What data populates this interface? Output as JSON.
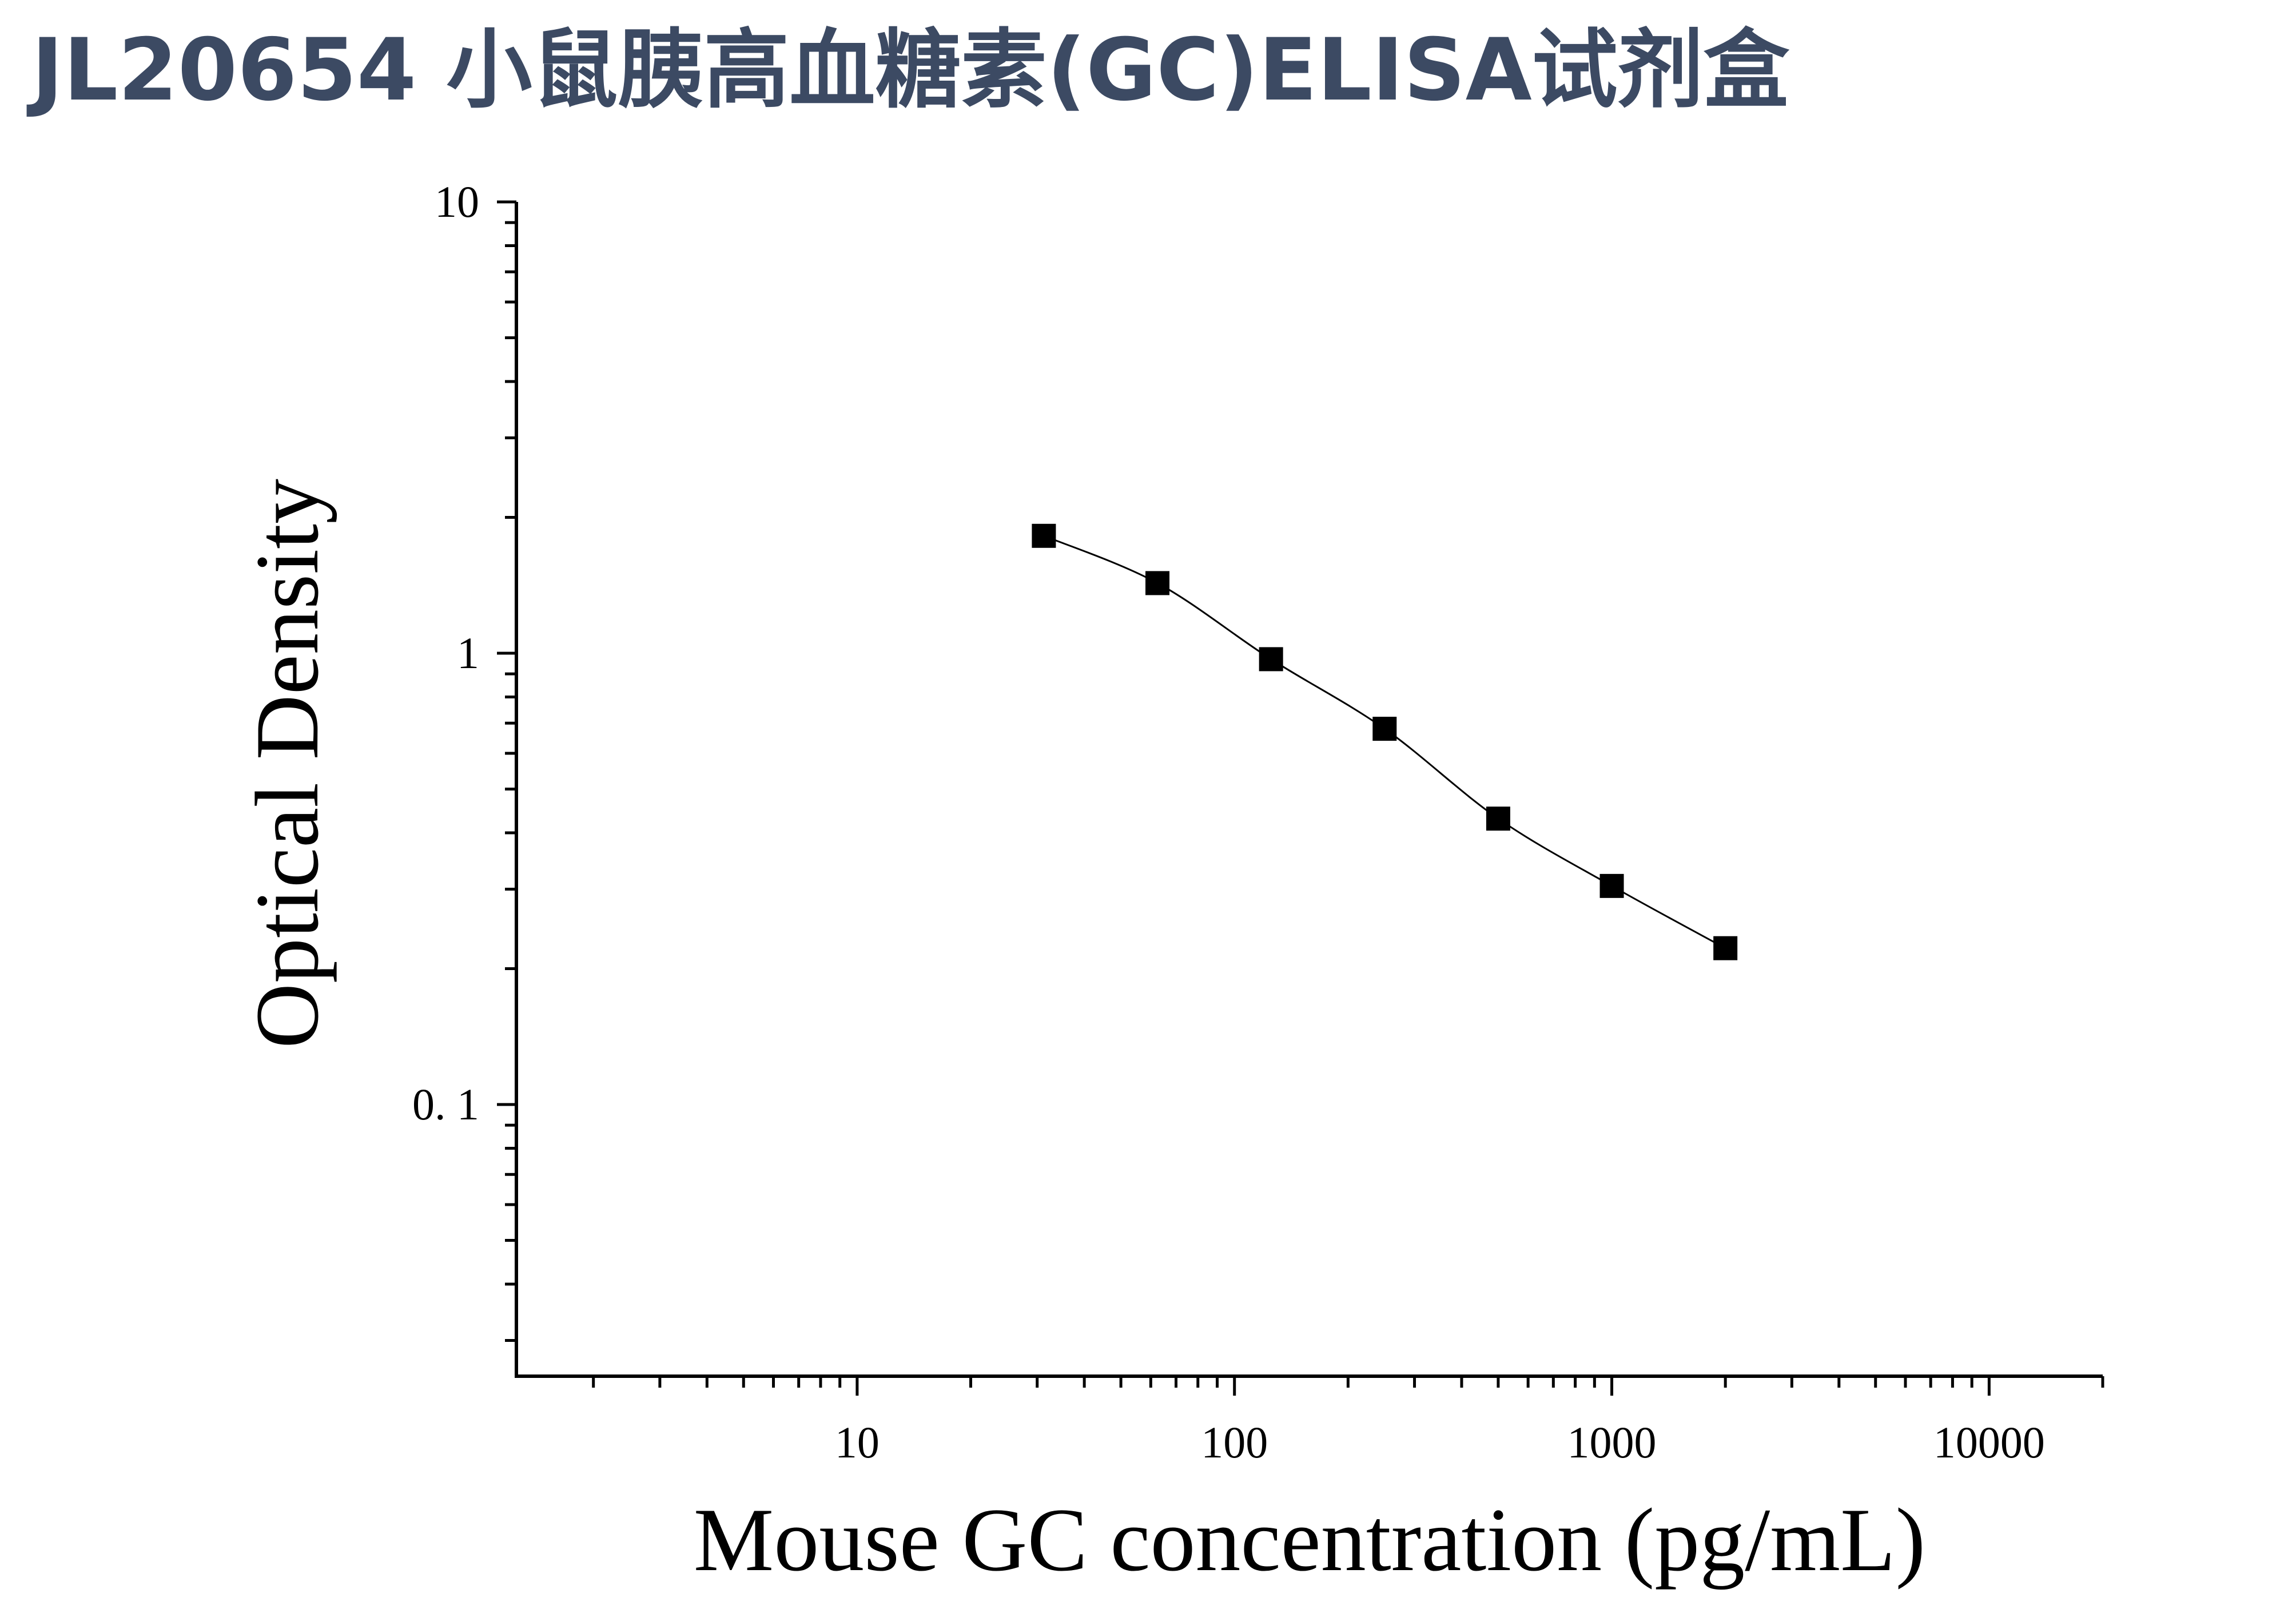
{
  "title": "JL20654 小鼠胰高血糖素(GC)ELISA试剂盒",
  "chart_data": {
    "type": "scatter",
    "xlabel": "Mouse GC concentration (pg/mL)",
    "ylabel": "Optical Density",
    "x_scale": "log",
    "y_scale": "log",
    "xlim": [
      1.25,
      20000
    ],
    "ylim": [
      0.025,
      10
    ],
    "x_ticks": [
      {
        "value": 10,
        "label": "10"
      },
      {
        "value": 100,
        "label": "100"
      },
      {
        "value": 1000,
        "label": "1000"
      },
      {
        "value": 10000,
        "label": "10000"
      }
    ],
    "y_ticks": [
      {
        "value": 0.1,
        "label": "0. 1"
      },
      {
        "value": 1,
        "label": "1"
      },
      {
        "value": 10,
        "label": "10"
      }
    ],
    "grid": false,
    "legend": "none",
    "marker": "square",
    "color": "#000000",
    "fit_line": true,
    "x": [
      31.25,
      62.5,
      125,
      250,
      500,
      1000,
      2000
    ],
    "y": [
      1.82,
      1.43,
      0.97,
      0.68,
      0.43,
      0.305,
      0.222
    ]
  }
}
